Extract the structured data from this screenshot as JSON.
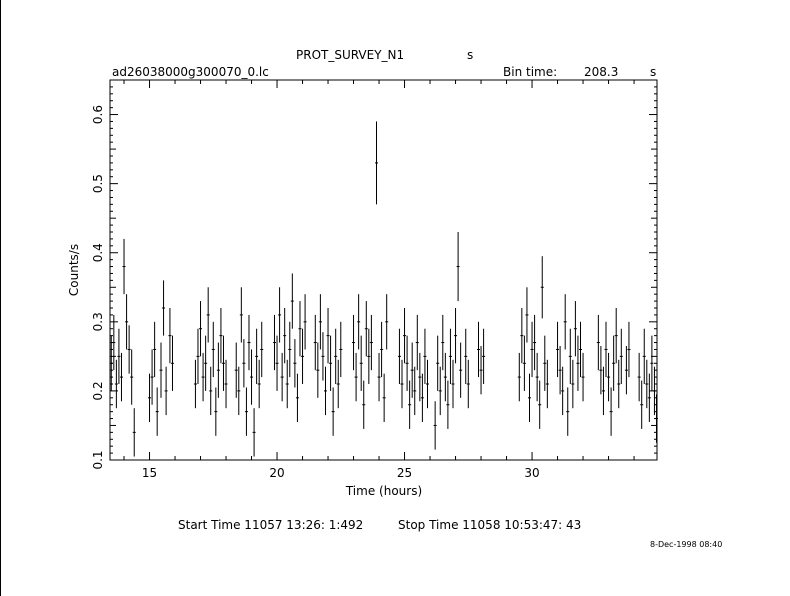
{
  "header": {
    "title": "PROT_SURVEY_N1",
    "title_unit": "s",
    "filename": "ad26038000g300070_0.lc",
    "bin_label": "Bin time:",
    "bin_value": "208.3",
    "bin_unit": "s"
  },
  "footer": {
    "start_time": "Start Time 11057 13:26: 1:492",
    "stop_time": "Stop Time 11058 10:53:47: 43",
    "date_stamp": "8-Dec-1998 08:40"
  },
  "chart_data": {
    "type": "scatter",
    "title": "",
    "xlabel": "Time (hours)",
    "ylabel": "Counts/s",
    "xlim": [
      13.45,
      34.9
    ],
    "ylim": [
      0.1,
      0.65
    ],
    "xticks": [
      15,
      20,
      25,
      30
    ],
    "yticks": [
      0.1,
      0.2,
      0.3,
      0.4,
      0.5,
      0.6
    ],
    "grid": false,
    "legend": "none",
    "style": "points with vertical error bars",
    "color": "#000000",
    "series": [
      {
        "points": [
          [
            13.5,
            0.24,
            0.04
          ],
          [
            13.6,
            0.27,
            0.04
          ],
          [
            13.7,
            0.21,
            0.035
          ],
          [
            13.8,
            0.25,
            0.04
          ],
          [
            13.9,
            0.22,
            0.035
          ],
          [
            14.0,
            0.38,
            0.04
          ],
          [
            14.1,
            0.3,
            0.04
          ],
          [
            14.2,
            0.26,
            0.035
          ],
          [
            14.3,
            0.22,
            0.04
          ],
          [
            14.4,
            0.14,
            0.035
          ],
          [
            15.0,
            0.19,
            0.035
          ],
          [
            15.1,
            0.22,
            0.04
          ],
          [
            15.2,
            0.26,
            0.04
          ],
          [
            15.3,
            0.17,
            0.035
          ],
          [
            15.45,
            0.23,
            0.04
          ],
          [
            15.55,
            0.32,
            0.04
          ],
          [
            15.65,
            0.2,
            0.035
          ],
          [
            15.8,
            0.28,
            0.04
          ],
          [
            15.9,
            0.24,
            0.04
          ],
          [
            16.8,
            0.21,
            0.035
          ],
          [
            16.9,
            0.25,
            0.04
          ],
          [
            17.0,
            0.29,
            0.04
          ],
          [
            17.1,
            0.22,
            0.035
          ],
          [
            17.2,
            0.24,
            0.04
          ],
          [
            17.3,
            0.31,
            0.04
          ],
          [
            17.4,
            0.2,
            0.035
          ],
          [
            17.5,
            0.26,
            0.04
          ],
          [
            17.6,
            0.17,
            0.035
          ],
          [
            17.7,
            0.23,
            0.04
          ],
          [
            17.8,
            0.28,
            0.04
          ],
          [
            17.9,
            0.24,
            0.04
          ],
          [
            18.0,
            0.21,
            0.035
          ],
          [
            18.4,
            0.23,
            0.04
          ],
          [
            18.5,
            0.2,
            0.035
          ],
          [
            18.6,
            0.31,
            0.04
          ],
          [
            18.7,
            0.24,
            0.035
          ],
          [
            18.8,
            0.17,
            0.035
          ],
          [
            18.9,
            0.27,
            0.04
          ],
          [
            19.0,
            0.22,
            0.04
          ],
          [
            19.1,
            0.14,
            0.035
          ],
          [
            19.2,
            0.25,
            0.04
          ],
          [
            19.3,
            0.21,
            0.035
          ],
          [
            19.4,
            0.26,
            0.04
          ],
          [
            19.9,
            0.27,
            0.04
          ],
          [
            20.0,
            0.24,
            0.04
          ],
          [
            20.1,
            0.31,
            0.04
          ],
          [
            20.2,
            0.22,
            0.035
          ],
          [
            20.3,
            0.28,
            0.04
          ],
          [
            20.4,
            0.21,
            0.035
          ],
          [
            20.5,
            0.26,
            0.04
          ],
          [
            20.6,
            0.33,
            0.04
          ],
          [
            20.7,
            0.24,
            0.035
          ],
          [
            20.8,
            0.19,
            0.035
          ],
          [
            20.9,
            0.29,
            0.04
          ],
          [
            21.0,
            0.25,
            0.04
          ],
          [
            21.1,
            0.3,
            0.04
          ],
          [
            21.5,
            0.27,
            0.04
          ],
          [
            21.6,
            0.23,
            0.04
          ],
          [
            21.7,
            0.3,
            0.04
          ],
          [
            21.8,
            0.25,
            0.035
          ],
          [
            21.9,
            0.2,
            0.035
          ],
          [
            22.0,
            0.28,
            0.04
          ],
          [
            22.1,
            0.24,
            0.04
          ],
          [
            22.2,
            0.17,
            0.035
          ],
          [
            22.3,
            0.25,
            0.04
          ],
          [
            22.4,
            0.21,
            0.035
          ],
          [
            22.5,
            0.26,
            0.04
          ],
          [
            23.0,
            0.27,
            0.04
          ],
          [
            23.1,
            0.22,
            0.035
          ],
          [
            23.2,
            0.3,
            0.04
          ],
          [
            23.3,
            0.24,
            0.04
          ],
          [
            23.4,
            0.18,
            0.035
          ],
          [
            23.5,
            0.29,
            0.04
          ],
          [
            23.6,
            0.25,
            0.04
          ],
          [
            23.7,
            0.27,
            0.04
          ],
          [
            23.9,
            0.53,
            0.06
          ],
          [
            24.0,
            0.22,
            0.035
          ],
          [
            24.1,
            0.26,
            0.04
          ],
          [
            24.2,
            0.19,
            0.035
          ],
          [
            24.3,
            0.3,
            0.04
          ],
          [
            24.8,
            0.25,
            0.04
          ],
          [
            24.9,
            0.21,
            0.035
          ],
          [
            25.0,
            0.28,
            0.04
          ],
          [
            25.1,
            0.24,
            0.04
          ],
          [
            25.2,
            0.18,
            0.035
          ],
          [
            25.3,
            0.23,
            0.04
          ],
          [
            25.4,
            0.2,
            0.035
          ],
          [
            25.5,
            0.27,
            0.04
          ],
          [
            25.6,
            0.22,
            0.035
          ],
          [
            25.7,
            0.19,
            0.035
          ],
          [
            25.8,
            0.25,
            0.04
          ],
          [
            25.9,
            0.21,
            0.035
          ],
          [
            26.2,
            0.15,
            0.035
          ],
          [
            26.3,
            0.24,
            0.04
          ],
          [
            26.4,
            0.2,
            0.035
          ],
          [
            26.5,
            0.27,
            0.04
          ],
          [
            26.6,
            0.22,
            0.035
          ],
          [
            26.7,
            0.18,
            0.035
          ],
          [
            26.8,
            0.25,
            0.04
          ],
          [
            26.9,
            0.21,
            0.035
          ],
          [
            27.0,
            0.28,
            0.04
          ],
          [
            27.1,
            0.38,
            0.05
          ],
          [
            27.2,
            0.23,
            0.04
          ],
          [
            27.4,
            0.25,
            0.04
          ],
          [
            27.5,
            0.21,
            0.035
          ],
          [
            27.9,
            0.26,
            0.04
          ],
          [
            28.0,
            0.23,
            0.035
          ],
          [
            28.1,
            0.25,
            0.04
          ],
          [
            29.5,
            0.22,
            0.035
          ],
          [
            29.6,
            0.28,
            0.04
          ],
          [
            29.7,
            0.24,
            0.04
          ],
          [
            29.8,
            0.31,
            0.04
          ],
          [
            29.9,
            0.19,
            0.035
          ],
          [
            30.0,
            0.26,
            0.04
          ],
          [
            30.1,
            0.27,
            0.04
          ],
          [
            30.2,
            0.22,
            0.035
          ],
          [
            30.3,
            0.18,
            0.035
          ],
          [
            30.4,
            0.35,
            0.045
          ],
          [
            30.5,
            0.24,
            0.04
          ],
          [
            30.6,
            0.21,
            0.035
          ],
          [
            31.0,
            0.26,
            0.04
          ],
          [
            31.1,
            0.23,
            0.035
          ],
          [
            31.2,
            0.2,
            0.035
          ],
          [
            31.3,
            0.3,
            0.04
          ],
          [
            31.4,
            0.17,
            0.035
          ],
          [
            31.5,
            0.25,
            0.04
          ],
          [
            31.6,
            0.21,
            0.035
          ],
          [
            31.7,
            0.29,
            0.04
          ],
          [
            31.8,
            0.24,
            0.04
          ],
          [
            31.9,
            0.26,
            0.04
          ],
          [
            32.0,
            0.22,
            0.035
          ],
          [
            32.6,
            0.27,
            0.04
          ],
          [
            32.7,
            0.23,
            0.035
          ],
          [
            32.8,
            0.2,
            0.035
          ],
          [
            32.9,
            0.26,
            0.04
          ],
          [
            33.0,
            0.22,
            0.035
          ],
          [
            33.1,
            0.17,
            0.035
          ],
          [
            33.2,
            0.24,
            0.04
          ],
          [
            33.3,
            0.28,
            0.04
          ],
          [
            33.4,
            0.21,
            0.035
          ],
          [
            33.5,
            0.25,
            0.04
          ],
          [
            33.7,
            0.23,
            0.035
          ],
          [
            33.8,
            0.26,
            0.04
          ],
          [
            34.2,
            0.22,
            0.035
          ],
          [
            34.3,
            0.18,
            0.035
          ],
          [
            34.4,
            0.25,
            0.04
          ],
          [
            34.5,
            0.21,
            0.035
          ],
          [
            34.6,
            0.19,
            0.035
          ],
          [
            34.7,
            0.24,
            0.04
          ],
          [
            34.8,
            0.2,
            0.035
          ],
          [
            34.88,
            0.16,
            0.035
          ]
        ]
      }
    ]
  }
}
